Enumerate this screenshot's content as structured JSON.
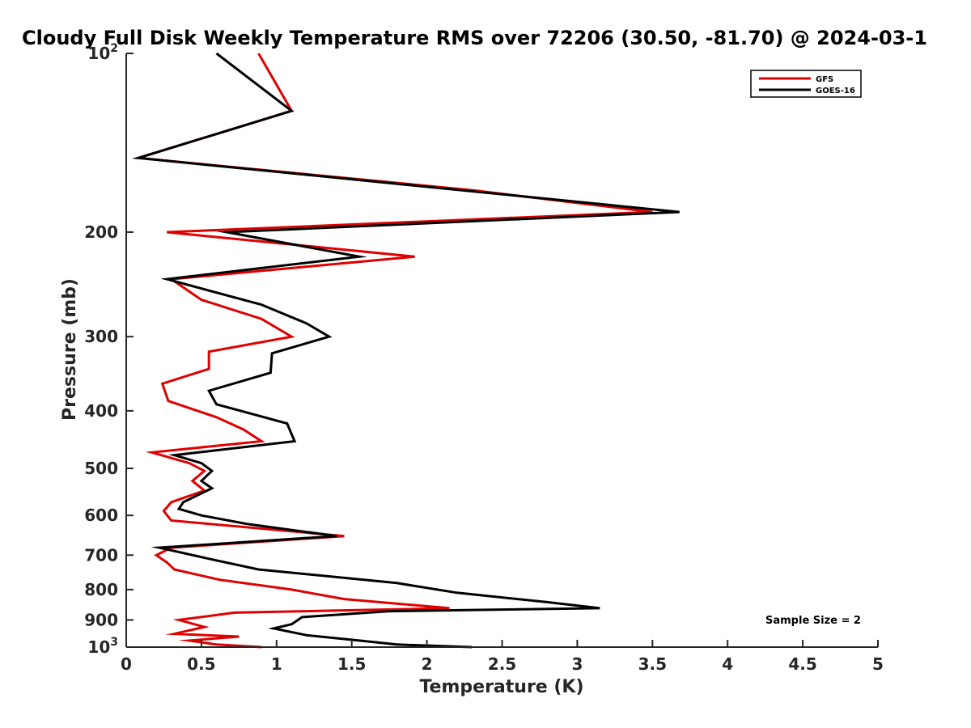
{
  "chart_data": {
    "type": "line",
    "title": "Cloudy Full Disk Weekly Temperature RMS over 72206 (30.50, -81.70) @ 2024-03-1",
    "xlabel": "Temperature (K)",
    "ylabel": "Pressure (mb)",
    "xlim": [
      0,
      5
    ],
    "ylim": [
      1000,
      100
    ],
    "y_scale": "log",
    "y_reversed": true,
    "grid": false,
    "legend_position": "top-right",
    "x_ticks": [
      0,
      0.5,
      1,
      1.5,
      2,
      2.5,
      3,
      3.5,
      4,
      4.5,
      5
    ],
    "x_tick_labels": [
      "0",
      "0.5",
      "1",
      "1.5",
      "2",
      "2.5",
      "3",
      "3.5",
      "4",
      "4.5",
      "5"
    ],
    "y_ticks": [
      100,
      200,
      300,
      400,
      500,
      600,
      700,
      800,
      900,
      1000
    ],
    "y_tick_labels": [
      {
        "base": "10",
        "exp": "2"
      },
      {
        "base": "200",
        "exp": ""
      },
      {
        "base": "300",
        "exp": ""
      },
      {
        "base": "400",
        "exp": ""
      },
      {
        "base": "500",
        "exp": ""
      },
      {
        "base": "600",
        "exp": ""
      },
      {
        "base": "700",
        "exp": ""
      },
      {
        "base": "800",
        "exp": ""
      },
      {
        "base": "900",
        "exp": ""
      },
      {
        "base": "10",
        "exp": "3"
      }
    ],
    "annotation": "Sample Size = 2",
    "series": [
      {
        "name": "GFS",
        "color": "#e00000",
        "points": [
          [
            0.88,
            100
          ],
          [
            1.1,
            125
          ],
          [
            0.08,
            150
          ],
          [
            2.3,
            170
          ],
          [
            3.5,
            185
          ],
          [
            0.27,
            200
          ],
          [
            1.92,
            220
          ],
          [
            0.3,
            240
          ],
          [
            0.5,
            260
          ],
          [
            0.9,
            280
          ],
          [
            1.1,
            300
          ],
          [
            0.55,
            318
          ],
          [
            0.55,
            340
          ],
          [
            0.24,
            360
          ],
          [
            0.28,
            385
          ],
          [
            0.6,
            410
          ],
          [
            0.78,
            430
          ],
          [
            0.9,
            450
          ],
          [
            0.17,
            470
          ],
          [
            0.42,
            490
          ],
          [
            0.52,
            505
          ],
          [
            0.44,
            525
          ],
          [
            0.52,
            545
          ],
          [
            0.3,
            570
          ],
          [
            0.25,
            590
          ],
          [
            0.3,
            612
          ],
          [
            1.45,
            650
          ],
          [
            0.3,
            680
          ],
          [
            0.2,
            700
          ],
          [
            0.27,
            720
          ],
          [
            0.32,
            740
          ],
          [
            0.62,
            770
          ],
          [
            1.1,
            800
          ],
          [
            1.45,
            830
          ],
          [
            2.15,
            860
          ],
          [
            0.72,
            875
          ],
          [
            0.35,
            900
          ],
          [
            0.52,
            925
          ],
          [
            0.32,
            950
          ],
          [
            0.75,
            960
          ],
          [
            0.42,
            975
          ],
          [
            0.6,
            990
          ],
          [
            0.9,
            1000
          ]
        ]
      },
      {
        "name": "GOES-16",
        "color": "#000000",
        "points": [
          [
            0.6,
            100
          ],
          [
            1.1,
            125
          ],
          [
            0.08,
            150
          ],
          [
            3.68,
            185
          ],
          [
            0.67,
            200
          ],
          [
            1.55,
            220
          ],
          [
            0.27,
            240
          ],
          [
            0.9,
            265
          ],
          [
            1.2,
            285
          ],
          [
            1.35,
            300
          ],
          [
            0.97,
            320
          ],
          [
            0.96,
            345
          ],
          [
            0.55,
            370
          ],
          [
            0.6,
            390
          ],
          [
            1.07,
            420
          ],
          [
            1.12,
            450
          ],
          [
            0.32,
            475
          ],
          [
            0.5,
            490
          ],
          [
            0.57,
            505
          ],
          [
            0.5,
            525
          ],
          [
            0.57,
            540
          ],
          [
            0.38,
            570
          ],
          [
            0.35,
            585
          ],
          [
            0.5,
            600
          ],
          [
            0.8,
            620
          ],
          [
            1.4,
            650
          ],
          [
            0.22,
            680
          ],
          [
            0.55,
            710
          ],
          [
            0.88,
            740
          ],
          [
            1.8,
            780
          ],
          [
            2.2,
            810
          ],
          [
            2.8,
            840
          ],
          [
            3.15,
            860
          ],
          [
            1.75,
            870
          ],
          [
            1.17,
            890
          ],
          [
            1.1,
            915
          ],
          [
            0.98,
            930
          ],
          [
            1.2,
            955
          ],
          [
            1.55,
            975
          ],
          [
            1.8,
            990
          ],
          [
            2.3,
            1000
          ]
        ]
      }
    ]
  }
}
